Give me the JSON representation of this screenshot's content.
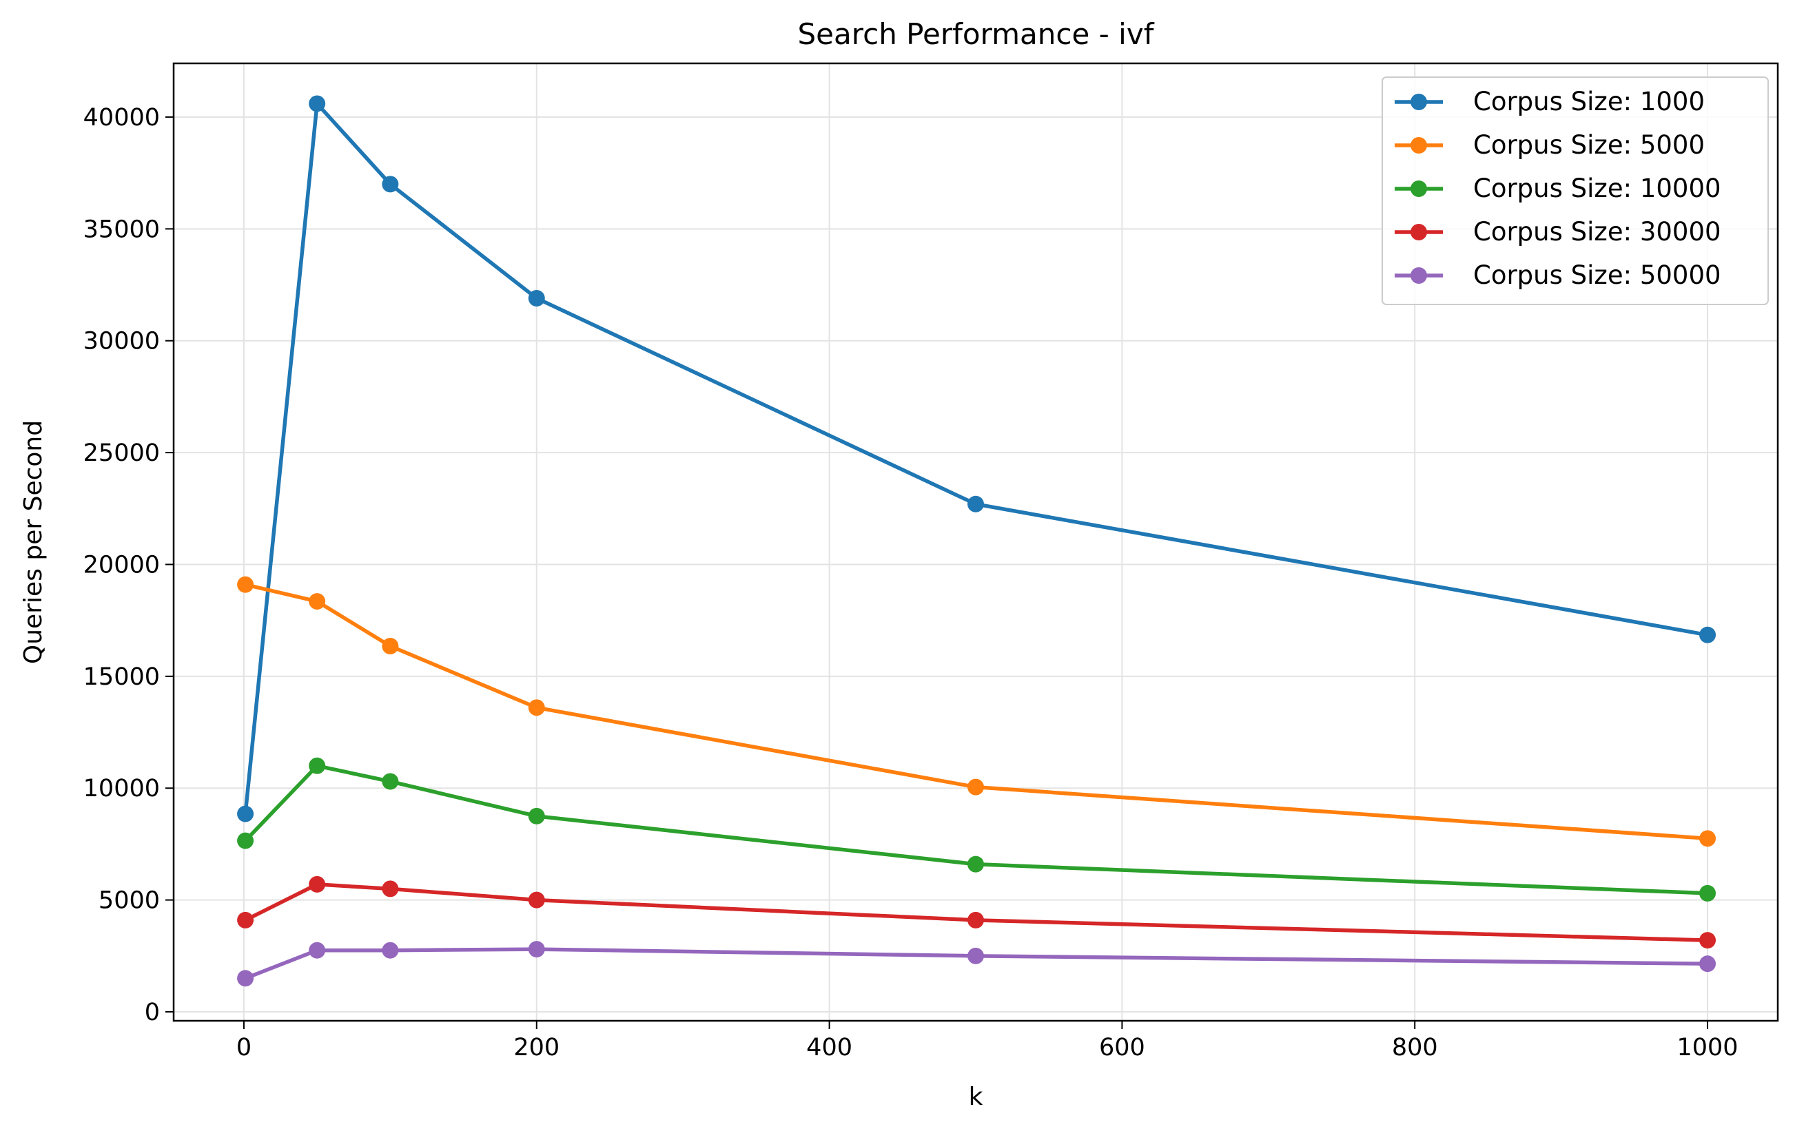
{
  "chart_data": {
    "type": "line",
    "title": "Search Performance - ivf",
    "xlabel": "k",
    "ylabel": "Queries per Second",
    "x": [
      1,
      50,
      100,
      200,
      500,
      1000
    ],
    "xlim": [
      -48,
      1048
    ],
    "ylim": [
      -400,
      42400
    ],
    "xticks": [
      0,
      200,
      400,
      600,
      800,
      1000
    ],
    "yticks": [
      0,
      5000,
      10000,
      15000,
      20000,
      25000,
      30000,
      35000,
      40000
    ],
    "grid": true,
    "legend_position": "top-right",
    "series": [
      {
        "name": "Corpus Size: 1000",
        "color": "#1f77b4",
        "values": [
          8850,
          40600,
          37000,
          31900,
          22700,
          16850
        ]
      },
      {
        "name": "Corpus Size: 5000",
        "color": "#ff7f0e",
        "values": [
          19100,
          18350,
          16350,
          13600,
          10050,
          7750
        ]
      },
      {
        "name": "Corpus Size: 10000",
        "color": "#2ca02c",
        "values": [
          7650,
          11000,
          10300,
          8750,
          6600,
          5300
        ]
      },
      {
        "name": "Corpus Size: 30000",
        "color": "#d62728",
        "values": [
          4100,
          5700,
          5500,
          5000,
          4100,
          3200
        ]
      },
      {
        "name": "Corpus Size: 50000",
        "color": "#9467bd",
        "values": [
          1500,
          2750,
          2750,
          2800,
          2500,
          2150
        ]
      }
    ]
  }
}
